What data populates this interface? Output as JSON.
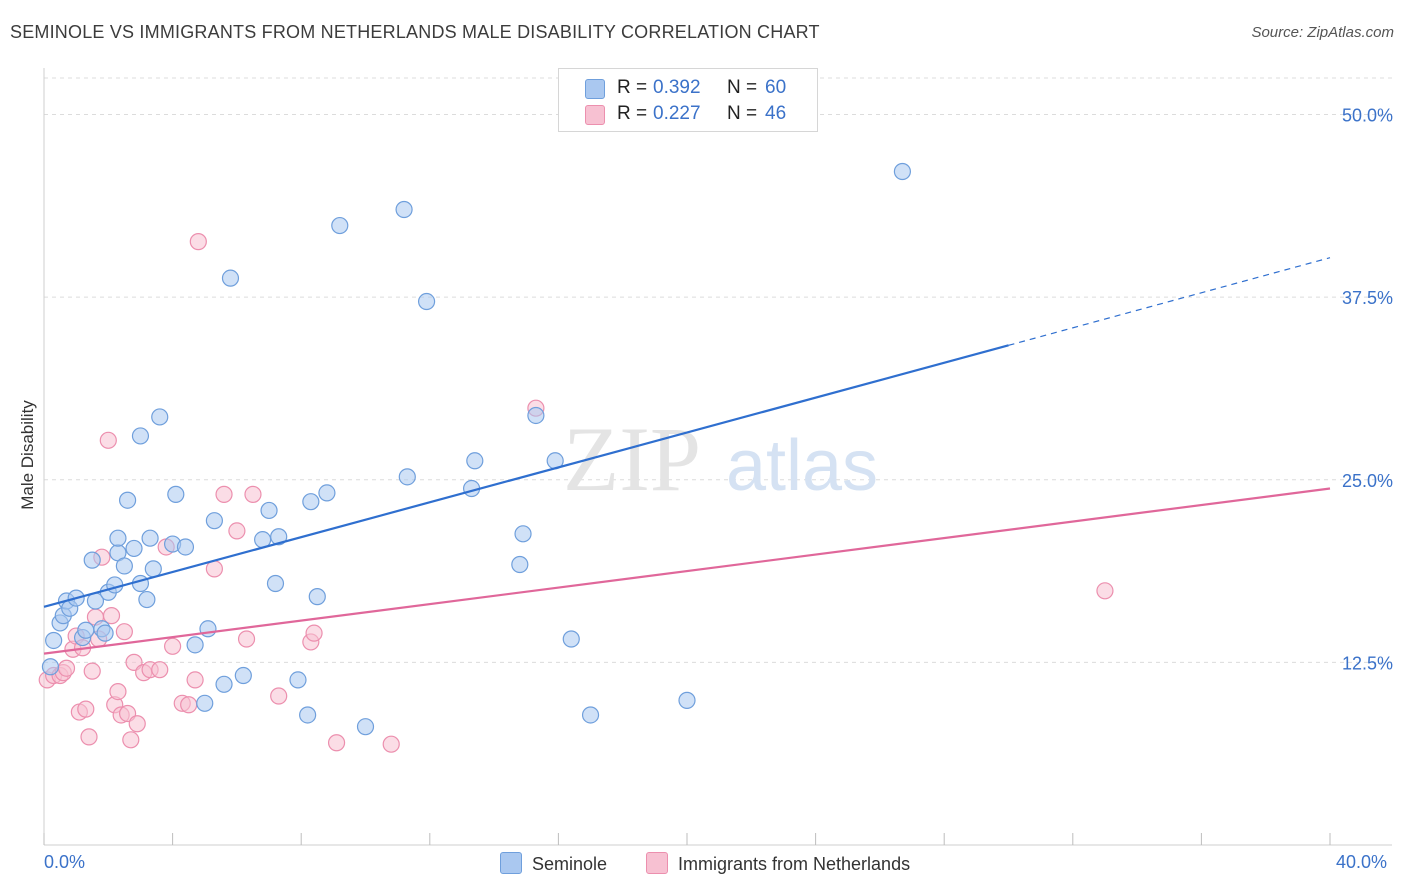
{
  "title": "SEMINOLE VS IMMIGRANTS FROM NETHERLANDS MALE DISABILITY CORRELATION CHART",
  "source": "Source: ZipAtlas.com",
  "watermark": {
    "zip": "ZIP",
    "atlas": "atlas"
  },
  "colors": {
    "seminole_fill": "#aac8f0",
    "seminole_stroke": "#6f9fdc",
    "seminole_line": "#2f6fcf",
    "neth_fill": "#f7c1d2",
    "neth_stroke": "#ec8fae",
    "neth_line": "#e0679a",
    "tick_text": "#3b72c9",
    "grid": "#dcdcdc"
  },
  "legend_top": {
    "rows": [
      {
        "r_label": "R =",
        "r_value": "0.392",
        "n_label": "N =",
        "n_value": "60"
      },
      {
        "r_label": "R =",
        "r_value": "0.227",
        "n_label": "N =",
        "n_value": "46"
      }
    ]
  },
  "legend_bottom": {
    "items": [
      "Seminole",
      "Immigrants from Netherlands"
    ]
  },
  "chart_data": {
    "type": "scatter",
    "title": "SEMINOLE VS IMMIGRANTS FROM NETHERLANDS MALE DISABILITY CORRELATION CHART",
    "xlabel": "",
    "ylabel": "Male Disability",
    "xlim": [
      0,
      40
    ],
    "ylim": [
      0,
      52.5
    ],
    "x_tick_labels": [
      "0.0%",
      "40.0%"
    ],
    "y_ticks": [
      12.5,
      25.0,
      37.5,
      50.0
    ],
    "y_tick_labels": [
      "12.5%",
      "25.0%",
      "37.5%",
      "50.0%"
    ],
    "grid": true,
    "legend_position": "top-center",
    "series": [
      {
        "name": "Seminole",
        "r": 0.392,
        "n": 60,
        "trend": {
          "x0": 0,
          "y0": 16.3,
          "x1": 30,
          "y1": 34.2,
          "dashed_to_x": 40,
          "dashed_to_y": 40.2
        },
        "points": [
          [
            0.3,
            14.0
          ],
          [
            0.5,
            15.2
          ],
          [
            0.6,
            15.7
          ],
          [
            0.7,
            16.7
          ],
          [
            0.8,
            16.2
          ],
          [
            1.0,
            16.9
          ],
          [
            1.2,
            14.2
          ],
          [
            1.3,
            14.7
          ],
          [
            1.5,
            19.5
          ],
          [
            1.6,
            16.7
          ],
          [
            1.8,
            14.8
          ],
          [
            1.9,
            14.5
          ],
          [
            2.0,
            17.3
          ],
          [
            2.2,
            17.8
          ],
          [
            2.3,
            20.0
          ],
          [
            2.3,
            21.0
          ],
          [
            2.5,
            19.1
          ],
          [
            2.6,
            23.6
          ],
          [
            2.8,
            20.3
          ],
          [
            3.0,
            17.9
          ],
          [
            3.0,
            28.0
          ],
          [
            3.2,
            16.8
          ],
          [
            3.3,
            21.0
          ],
          [
            3.4,
            18.9
          ],
          [
            3.6,
            29.3
          ],
          [
            4.0,
            20.6
          ],
          [
            4.1,
            24.0
          ],
          [
            4.4,
            20.4
          ],
          [
            4.7,
            13.7
          ],
          [
            5.0,
            9.7
          ],
          [
            5.1,
            14.8
          ],
          [
            5.3,
            22.2
          ],
          [
            5.6,
            11.0
          ],
          [
            5.8,
            38.8
          ],
          [
            6.2,
            11.6
          ],
          [
            6.8,
            20.9
          ],
          [
            7.0,
            22.9
          ],
          [
            7.2,
            17.9
          ],
          [
            7.3,
            21.1
          ],
          [
            7.9,
            11.3
          ],
          [
            8.2,
            8.9
          ],
          [
            8.3,
            23.5
          ],
          [
            8.5,
            17.0
          ],
          [
            8.8,
            24.1
          ],
          [
            9.2,
            42.4
          ],
          [
            10.0,
            8.1
          ],
          [
            11.2,
            43.5
          ],
          [
            11.3,
            25.2
          ],
          [
            11.9,
            37.2
          ],
          [
            13.3,
            24.4
          ],
          [
            13.4,
            26.3
          ],
          [
            14.8,
            19.2
          ],
          [
            14.9,
            21.3
          ],
          [
            15.3,
            29.4
          ],
          [
            15.9,
            26.3
          ],
          [
            16.4,
            14.1
          ],
          [
            17.0,
            8.9
          ],
          [
            20.0,
            9.9
          ],
          [
            26.7,
            46.1
          ],
          [
            0.2,
            12.2
          ]
        ]
      },
      {
        "name": "Immigrants from Netherlands",
        "r": 0.227,
        "n": 46,
        "trend": {
          "x0": 0,
          "y0": 13.1,
          "x1": 40,
          "y1": 24.4
        },
        "points": [
          [
            0.1,
            11.3
          ],
          [
            0.3,
            11.6
          ],
          [
            0.5,
            11.6
          ],
          [
            0.6,
            11.8
          ],
          [
            0.7,
            12.1
          ],
          [
            0.9,
            13.4
          ],
          [
            1.0,
            14.3
          ],
          [
            1.1,
            9.1
          ],
          [
            1.2,
            13.5
          ],
          [
            1.3,
            9.3
          ],
          [
            1.4,
            7.4
          ],
          [
            1.5,
            11.9
          ],
          [
            1.6,
            15.6
          ],
          [
            1.7,
            14.1
          ],
          [
            1.8,
            19.7
          ],
          [
            2.0,
            27.7
          ],
          [
            2.1,
            15.7
          ],
          [
            2.2,
            9.6
          ],
          [
            2.3,
            10.5
          ],
          [
            2.4,
            8.9
          ],
          [
            2.5,
            14.6
          ],
          [
            2.6,
            9.0
          ],
          [
            2.7,
            7.2
          ],
          [
            2.8,
            12.5
          ],
          [
            2.9,
            8.3
          ],
          [
            3.1,
            11.8
          ],
          [
            3.3,
            12.0
          ],
          [
            3.6,
            12.0
          ],
          [
            3.8,
            20.4
          ],
          [
            4.0,
            13.6
          ],
          [
            4.3,
            9.7
          ],
          [
            4.5,
            9.6
          ],
          [
            4.7,
            11.3
          ],
          [
            4.8,
            41.3
          ],
          [
            5.3,
            18.9
          ],
          [
            5.6,
            24.0
          ],
          [
            6.0,
            21.5
          ],
          [
            6.3,
            14.1
          ],
          [
            6.5,
            24.0
          ],
          [
            7.3,
            10.2
          ],
          [
            8.3,
            13.9
          ],
          [
            8.4,
            14.5
          ],
          [
            9.1,
            7.0
          ],
          [
            10.8,
            6.9
          ],
          [
            15.3,
            29.9
          ],
          [
            33.0,
            17.4
          ]
        ]
      }
    ]
  }
}
